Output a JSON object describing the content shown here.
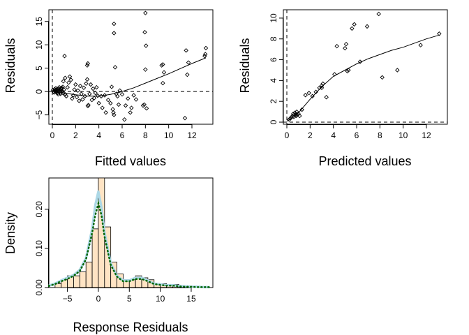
{
  "chart_data": [
    {
      "type": "scatter",
      "xlabel": "Fitted values",
      "ylabel": "Residuals",
      "xlim": [
        -0.3,
        13.8
      ],
      "ylim": [
        -7,
        17.5
      ],
      "xticks": [
        0,
        2,
        4,
        6,
        8,
        10,
        12
      ],
      "yticks": [
        -5,
        0,
        5,
        10,
        15
      ],
      "hline": 0,
      "vline": 0,
      "points": [
        [
          0.05,
          0.3
        ],
        [
          0.1,
          0.0
        ],
        [
          0.15,
          -0.2
        ],
        [
          0.2,
          0.5
        ],
        [
          0.25,
          0.2
        ],
        [
          0.3,
          -0.1
        ],
        [
          0.35,
          0.4
        ],
        [
          0.4,
          0.1
        ],
        [
          0.45,
          -0.3
        ],
        [
          0.5,
          0.6
        ],
        [
          0.55,
          0.2
        ],
        [
          0.6,
          0.0
        ],
        [
          0.65,
          0.5
        ],
        [
          0.7,
          -0.2
        ],
        [
          0.75,
          0.3
        ],
        [
          0.8,
          0.8
        ],
        [
          0.85,
          0.1
        ],
        [
          0.9,
          1.0
        ],
        [
          0.95,
          -0.4
        ],
        [
          1.0,
          0.4
        ],
        [
          0.6,
          0.9
        ],
        [
          0.7,
          -0.5
        ],
        [
          0.8,
          0.6
        ],
        [
          0.5,
          -0.6
        ],
        [
          0.3,
          0.7
        ],
        [
          1.05,
          7.6
        ],
        [
          0.95,
          2.2
        ],
        [
          1.1,
          2.9
        ],
        [
          1.2,
          -1.0
        ],
        [
          1.1,
          -0.6
        ],
        [
          1.3,
          0.9
        ],
        [
          1.4,
          1.9
        ],
        [
          1.5,
          3.2
        ],
        [
          1.6,
          2.5
        ],
        [
          1.7,
          -1.5
        ],
        [
          1.8,
          -0.8
        ],
        [
          1.9,
          0.4
        ],
        [
          2.0,
          1.5
        ],
        [
          2.1,
          -1.2
        ],
        [
          2.2,
          0.2
        ],
        [
          2.3,
          -2.0
        ],
        [
          2.4,
          1.2
        ],
        [
          2.5,
          -0.5
        ],
        [
          2.6,
          -1.7
        ],
        [
          2.7,
          0.8
        ],
        [
          2.8,
          -1.0
        ],
        [
          2.9,
          1.7
        ],
        [
          3.0,
          5.6
        ],
        [
          3.05,
          6.0
        ],
        [
          3.0,
          2.6
        ],
        [
          3.1,
          -2.9
        ],
        [
          3.05,
          -3.1
        ],
        [
          3.2,
          -0.5
        ],
        [
          3.3,
          1.5
        ],
        [
          3.4,
          -1.8
        ],
        [
          3.5,
          0.6
        ],
        [
          3.6,
          -1.4
        ],
        [
          3.7,
          -0.3
        ],
        [
          3.8,
          0.9
        ],
        [
          3.9,
          -0.9
        ],
        [
          4.0,
          -2.5
        ],
        [
          4.2,
          -1.0
        ],
        [
          4.3,
          -3.5
        ],
        [
          4.5,
          -0.8
        ],
        [
          4.6,
          -4.5
        ],
        [
          4.8,
          -1.8
        ],
        [
          5.0,
          -2.5
        ],
        [
          5.1,
          1.0
        ],
        [
          5.2,
          -3.8
        ],
        [
          5.25,
          -4.5
        ],
        [
          5.3,
          -5.0
        ],
        [
          5.3,
          14.5
        ],
        [
          5.3,
          12.5
        ],
        [
          5.4,
          5.2
        ],
        [
          5.5,
          -0.5
        ],
        [
          5.6,
          -1.0
        ],
        [
          5.7,
          -2.8
        ],
        [
          5.8,
          0.2
        ],
        [
          6.0,
          -0.6
        ],
        [
          6.2,
          -6.0
        ],
        [
          6.3,
          -3.0
        ],
        [
          6.5,
          -1.5
        ],
        [
          6.7,
          -4.5
        ],
        [
          6.8,
          -3.5
        ],
        [
          7.0,
          -0.8
        ],
        [
          7.2,
          -1.7
        ],
        [
          7.8,
          -3.0
        ],
        [
          7.9,
          -2.8
        ],
        [
          8.0,
          4.7
        ],
        [
          8.05,
          9.8
        ],
        [
          7.95,
          12.7
        ],
        [
          8.0,
          16.8
        ],
        [
          8.1,
          -3.6
        ],
        [
          9.4,
          5.6
        ],
        [
          9.5,
          5.8
        ],
        [
          9.6,
          4.1
        ],
        [
          9.5,
          1.8
        ],
        [
          11.4,
          -5.7
        ],
        [
          11.5,
          8.8
        ],
        [
          11.6,
          3.6
        ],
        [
          11.7,
          6.2
        ],
        [
          13.1,
          7.6
        ],
        [
          13.15,
          8.0
        ],
        [
          13.2,
          9.3
        ]
      ],
      "smooth_curve": [
        [
          0,
          0.2
        ],
        [
          1,
          -0.3
        ],
        [
          2,
          -0.7
        ],
        [
          3,
          -1.0
        ],
        [
          4,
          -1.0
        ],
        [
          5,
          -0.6
        ],
        [
          6,
          0.0
        ],
        [
          7,
          0.8
        ],
        [
          8,
          1.8
        ],
        [
          9,
          2.8
        ],
        [
          10,
          3.8
        ],
        [
          11,
          4.9
        ],
        [
          12,
          6.0
        ],
        [
          13.2,
          7.2
        ]
      ]
    },
    {
      "type": "scatter",
      "xlabel": "Predicted values",
      "ylabel": "Residuals",
      "xlim": [
        -0.3,
        13.8
      ],
      "ylim": [
        -0.2,
        10.8
      ],
      "xticks": [
        0,
        2,
        4,
        6,
        8,
        10,
        12
      ],
      "yticks": [
        0,
        2,
        4,
        6,
        8,
        10
      ],
      "hline": 0,
      "vline": 0,
      "points": [
        [
          0.2,
          0.25
        ],
        [
          0.3,
          0.35
        ],
        [
          0.4,
          0.5
        ],
        [
          0.5,
          0.6
        ],
        [
          0.55,
          0.8
        ],
        [
          0.6,
          0.5
        ],
        [
          0.7,
          0.9
        ],
        [
          0.75,
          0.7
        ],
        [
          0.8,
          0.6
        ],
        [
          0.85,
          1.0
        ],
        [
          0.9,
          0.7
        ],
        [
          1.0,
          0.8
        ],
        [
          1.1,
          0.6
        ],
        [
          1.3,
          1.2
        ],
        [
          1.6,
          2.6
        ],
        [
          1.9,
          2.8
        ],
        [
          2.2,
          2.5
        ],
        [
          2.5,
          2.9
        ],
        [
          2.8,
          3.3
        ],
        [
          3.0,
          3.5
        ],
        [
          3.1,
          3.7
        ],
        [
          3.0,
          3.3
        ],
        [
          3.4,
          2.4
        ],
        [
          4.1,
          4.6
        ],
        [
          4.3,
          7.3
        ],
        [
          5.0,
          7.1
        ],
        [
          5.1,
          7.5
        ],
        [
          5.2,
          4.9
        ],
        [
          5.3,
          5.0
        ],
        [
          5.6,
          9.0
        ],
        [
          5.8,
          9.4
        ],
        [
          6.3,
          5.8
        ],
        [
          6.9,
          9.2
        ],
        [
          7.9,
          10.4
        ],
        [
          8.2,
          4.3
        ],
        [
          9.5,
          5.0
        ],
        [
          11.5,
          7.4
        ],
        [
          13.1,
          8.5
        ]
      ],
      "smooth_curve": [
        [
          0,
          0.1
        ],
        [
          0.5,
          0.4
        ],
        [
          1,
          0.9
        ],
        [
          2,
          2.2
        ],
        [
          3,
          3.4
        ],
        [
          4,
          4.4
        ],
        [
          5,
          5.0
        ],
        [
          6,
          5.6
        ],
        [
          7,
          6.1
        ],
        [
          8,
          6.5
        ],
        [
          9,
          6.9
        ],
        [
          10,
          7.2
        ],
        [
          11,
          7.6
        ],
        [
          12,
          8.0
        ],
        [
          13.2,
          8.4
        ]
      ]
    },
    {
      "type": "bar",
      "subtype": "histogram",
      "xlabel": "Response Residuals",
      "ylabel": "Density",
      "xlim": [
        -8,
        18.5
      ],
      "ylim": [
        0,
        0.28
      ],
      "xticks": [
        -5,
        0,
        5,
        10,
        15
      ],
      "yticks": [
        0.0,
        0.1,
        0.2
      ],
      "ytick_labels": [
        "0.00",
        "0.10",
        "0.20"
      ],
      "bin_edges": [
        -7,
        -6,
        -5,
        -4,
        -3,
        -2,
        -1,
        0,
        1,
        2,
        3,
        4,
        5,
        6,
        7,
        8,
        9,
        10,
        11,
        12,
        13,
        14,
        15,
        16,
        17,
        18
      ],
      "values": [
        0.01,
        0.02,
        0.03,
        0.03,
        0.04,
        0.065,
        0.15,
        0.28,
        0.155,
        0.065,
        0.035,
        0.02,
        0.02,
        0.03,
        0.025,
        0.02,
        0.01,
        0.01,
        0.005,
        0.008,
        0.005,
        0.002,
        0.003,
        0.002,
        0.001
      ],
      "bar_color": "#FFE4C4",
      "density_solid": {
        "color": "#ADD8E6",
        "points": [
          [
            -8,
            0.005
          ],
          [
            -7,
            0.01
          ],
          [
            -6,
            0.018
          ],
          [
            -5,
            0.025
          ],
          [
            -4,
            0.032
          ],
          [
            -3,
            0.045
          ],
          [
            -2,
            0.075
          ],
          [
            -1,
            0.15
          ],
          [
            -0.5,
            0.21
          ],
          [
            0,
            0.245
          ],
          [
            0.5,
            0.205
          ],
          [
            1,
            0.14
          ],
          [
            2,
            0.062
          ],
          [
            3,
            0.03
          ],
          [
            4,
            0.018
          ],
          [
            5,
            0.018
          ],
          [
            6,
            0.025
          ],
          [
            7,
            0.025
          ],
          [
            8,
            0.018
          ],
          [
            9,
            0.01
          ],
          [
            10,
            0.008
          ],
          [
            11,
            0.006
          ],
          [
            12,
            0.006
          ],
          [
            13,
            0.004
          ],
          [
            14,
            0.003
          ],
          [
            15,
            0.002
          ],
          [
            16,
            0.002
          ],
          [
            17,
            0.001
          ],
          [
            18,
            0.001
          ]
        ]
      },
      "density_dotted": {
        "color": "#006400",
        "points": [
          [
            -8,
            0.004
          ],
          [
            -7,
            0.009
          ],
          [
            -6,
            0.016
          ],
          [
            -5,
            0.022
          ],
          [
            -4,
            0.03
          ],
          [
            -3,
            0.042
          ],
          [
            -2,
            0.072
          ],
          [
            -1,
            0.14
          ],
          [
            -0.5,
            0.185
          ],
          [
            0,
            0.215
          ],
          [
            0.5,
            0.185
          ],
          [
            1,
            0.13
          ],
          [
            2,
            0.058
          ],
          [
            3,
            0.028
          ],
          [
            4,
            0.016
          ],
          [
            5,
            0.016
          ],
          [
            6,
            0.022
          ],
          [
            7,
            0.022
          ],
          [
            8,
            0.016
          ],
          [
            9,
            0.009
          ],
          [
            10,
            0.007
          ],
          [
            11,
            0.005
          ],
          [
            12,
            0.005
          ],
          [
            13,
            0.003
          ],
          [
            14,
            0.002
          ],
          [
            15,
            0.002
          ],
          [
            16,
            0.001
          ],
          [
            17,
            0.001
          ],
          [
            18,
            0.001
          ]
        ]
      }
    }
  ]
}
